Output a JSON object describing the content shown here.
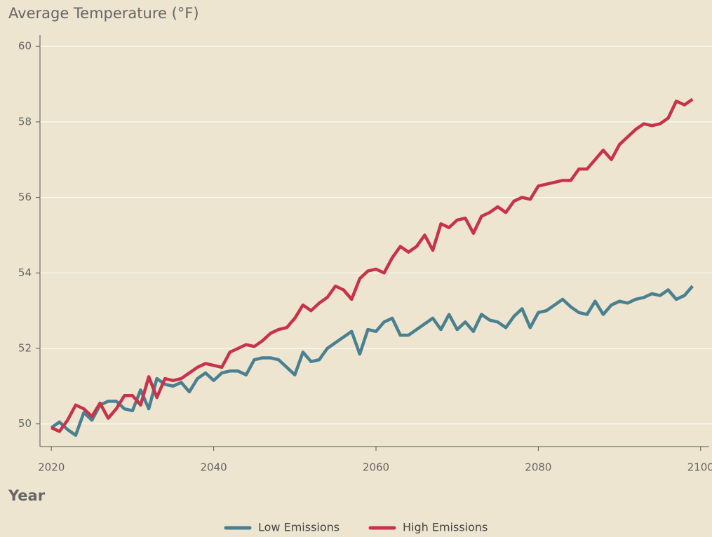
{
  "chart_data": {
    "type": "line",
    "title": "Average Temperature (°F)",
    "xlabel": "Year",
    "x": [
      2020,
      2021,
      2022,
      2023,
      2024,
      2025,
      2026,
      2027,
      2028,
      2029,
      2030,
      2031,
      2032,
      2033,
      2034,
      2035,
      2036,
      2037,
      2038,
      2039,
      2040,
      2041,
      2042,
      2043,
      2044,
      2045,
      2046,
      2047,
      2048,
      2049,
      2050,
      2051,
      2052,
      2053,
      2054,
      2055,
      2056,
      2057,
      2058,
      2059,
      2060,
      2061,
      2062,
      2063,
      2064,
      2065,
      2066,
      2067,
      2068,
      2069,
      2070,
      2071,
      2072,
      2073,
      2074,
      2075,
      2076,
      2077,
      2078,
      2079,
      2080,
      2081,
      2082,
      2083,
      2084,
      2085,
      2086,
      2087,
      2088,
      2089,
      2090,
      2091,
      2092,
      2093,
      2094,
      2095,
      2096,
      2097,
      2098,
      2099
    ],
    "series": [
      {
        "name": "Low Emissions",
        "color": "#4a8090",
        "values": [
          49.9,
          50.05,
          49.85,
          49.7,
          50.3,
          50.1,
          50.5,
          50.6,
          50.6,
          50.4,
          50.35,
          50.9,
          50.4,
          51.2,
          51.05,
          51.0,
          51.1,
          50.85,
          51.2,
          51.35,
          51.15,
          51.35,
          51.4,
          51.4,
          51.3,
          51.7,
          51.75,
          51.75,
          51.7,
          51.5,
          51.3,
          51.9,
          51.65,
          51.7,
          52.0,
          52.15,
          52.3,
          52.45,
          51.85,
          52.5,
          52.45,
          52.7,
          52.8,
          52.35,
          52.35,
          52.5,
          52.65,
          52.8,
          52.5,
          52.9,
          52.5,
          52.7,
          52.45,
          52.9,
          52.75,
          52.7,
          52.55,
          52.85,
          53.05,
          52.55,
          52.95,
          53.0,
          53.15,
          53.3,
          53.1,
          52.95,
          52.9,
          53.25,
          52.9,
          53.15,
          53.25,
          53.2,
          53.3,
          53.35,
          53.45,
          53.4,
          53.55,
          53.3,
          53.4,
          53.65
        ]
      },
      {
        "name": "High Emissions",
        "color": "#c8334a",
        "values": [
          49.9,
          49.8,
          50.1,
          50.5,
          50.4,
          50.2,
          50.55,
          50.15,
          50.4,
          50.75,
          50.75,
          50.5,
          51.25,
          50.7,
          51.2,
          51.15,
          51.2,
          51.35,
          51.5,
          51.6,
          51.55,
          51.5,
          51.9,
          52.0,
          52.1,
          52.05,
          52.2,
          52.4,
          52.5,
          52.55,
          52.8,
          53.15,
          53.0,
          53.2,
          53.35,
          53.65,
          53.55,
          53.3,
          53.85,
          54.05,
          54.1,
          54.0,
          54.4,
          54.7,
          54.55,
          54.7,
          55.0,
          54.6,
          55.3,
          55.2,
          55.4,
          55.45,
          55.05,
          55.5,
          55.6,
          55.75,
          55.6,
          55.9,
          56.0,
          55.95,
          56.3,
          56.35,
          56.4,
          56.45,
          56.45,
          56.75,
          56.75,
          57.0,
          57.25,
          57.0,
          57.4,
          57.6,
          57.8,
          57.95,
          57.9,
          57.95,
          58.1,
          58.55,
          58.45,
          58.6
        ]
      }
    ],
    "xlim": [
      2018.6,
      2101.4
    ],
    "xticks": [
      2020,
      2040,
      2060,
      2080,
      2100
    ],
    "ylim": [
      49.4,
      60.3
    ],
    "yticks": [
      50,
      52,
      54,
      56,
      58,
      60
    ],
    "grid": true,
    "legend": "bottom"
  }
}
